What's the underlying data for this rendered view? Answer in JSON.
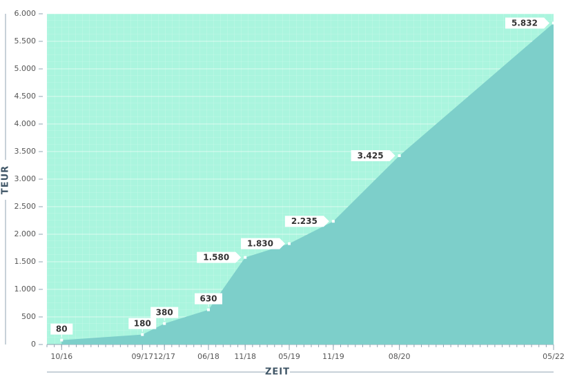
{
  "chart_data": {
    "type": "area",
    "x": [
      "10/16",
      "09/17",
      "12/17",
      "06/18",
      "11/18",
      "05/19",
      "11/19",
      "08/20",
      "05/22"
    ],
    "xlim": [
      "08/16",
      "05/22"
    ],
    "series": [
      {
        "name": null,
        "color": "#7dcfca",
        "values": [
          80,
          180,
          380,
          630,
          1580,
          1830,
          2235,
          3425,
          5832
        ],
        "value_labels": [
          "80",
          "180",
          "380",
          "630",
          "1.580",
          "1.830",
          "2.235",
          "3.425",
          "5.832"
        ]
      }
    ],
    "ylim": [
      0,
      6000
    ],
    "yticks": [
      0,
      500,
      {
        "value": 1000,
        "label": "1.000"
      },
      {
        "value": 1500,
        "label": "1.500"
      },
      {
        "value": 2000,
        "label": "2.000"
      },
      {
        "value": 2500,
        "label": "2.500"
      },
      {
        "value": 3000,
        "label": "3.000"
      },
      {
        "value": 3500,
        "label": "3.500"
      },
      {
        "value": 4000,
        "label": "4.000"
      },
      {
        "value": 4500,
        "label": "4.500"
      },
      {
        "value": 5000,
        "label": "5.000"
      },
      {
        "value": 5500,
        "label": "5.500"
      },
      {
        "value": 6000,
        "label": "6.000"
      }
    ],
    "ylabel": "TEUR",
    "xlabel": "ZEIT",
    "background": "#aaf5de",
    "grid": true
  }
}
